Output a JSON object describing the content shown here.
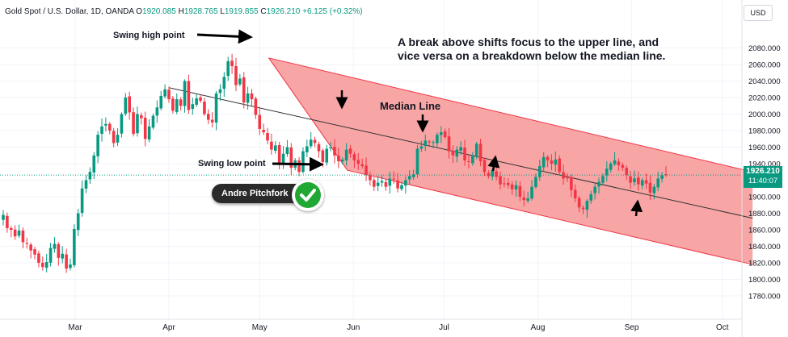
{
  "header": {
    "symbol": "Gold Spot / U.S. Dollar, 1D, OANDA",
    "open_label": "O",
    "open": "1920.085",
    "high_label": "H",
    "high": "1928.765",
    "low_label": "L",
    "low": "1919.855",
    "close_label": "C",
    "close": "1926.210",
    "change": "+6.125 (+0.32%)"
  },
  "currency_button": "USD",
  "last_price": "1926.210",
  "countdown": "11:40:07",
  "annotations": {
    "swing_high": "Swing high point",
    "swing_low": "Swing low point",
    "median": "Median Line",
    "explanation_1": "A break above shifts focus to the upper line, and",
    "explanation_2": "vice versa on a breakdown below the median line.",
    "pitchfork": "Andre Pitchfork"
  },
  "colors": {
    "up": "#089981",
    "down": "#f23645",
    "channel_fill": "#f7a0a0",
    "channel_line": "#f23645",
    "median_line": "#333333",
    "check_green": "#21a834"
  },
  "chart_data": {
    "type": "candlestick",
    "y_axis": {
      "ticks": [
        1780,
        1800,
        1820,
        1840,
        1860,
        1880,
        1900,
        1920,
        1940,
        1960,
        1980,
        2000,
        2020,
        2040,
        2060,
        2080
      ],
      "tick_labels": [
        "1780.000",
        "1800.000",
        "1820.000",
        "1840.000",
        "1860.000",
        "1880.000",
        "1900.000",
        "1920.000",
        "1940.000",
        "1960.000",
        "1980.000",
        "2000.000",
        "2020.000",
        "2040.000",
        "2060.000",
        "2080.000"
      ]
    },
    "x_axis": {
      "labels": [
        {
          "label": "Mar",
          "date": "2023-03-01"
        },
        {
          "label": "Apr",
          "date": "2023-04-01"
        },
        {
          "label": "May",
          "date": "2023-05-01"
        },
        {
          "label": "Jun",
          "date": "2023-06-01"
        },
        {
          "label": "Jul",
          "date": "2023-07-01"
        },
        {
          "label": "Aug",
          "date": "2023-08-01"
        },
        {
          "label": "Sep",
          "date": "2023-09-01"
        },
        {
          "label": "Oct",
          "date": "2023-10-01"
        }
      ]
    },
    "close_series": [
      1878,
      1862,
      1860,
      1852,
      1859,
      1845,
      1843,
      1835,
      1830,
      1820,
      1815,
      1821,
      1838,
      1843,
      1826,
      1831,
      1813,
      1818,
      1861,
      1880,
      1910,
      1920,
      1930,
      1950,
      1975,
      1985,
      1988,
      1980,
      1965,
      1975,
      2000,
      2020,
      2002,
      1976,
      2000,
      1995,
      1970,
      1985,
      1998,
      2008,
      2022,
      2030,
      2018,
      2004,
      2018,
      2010,
      2040,
      2005,
      2012,
      2019,
      2016,
      2000,
      1993,
      1990,
      2025,
      2030,
      2045,
      2064,
      2058,
      2035,
      2043,
      2014,
      2025,
      2018,
      1999,
      1982,
      1978,
      1968,
      1957,
      1962,
      1941,
      1952,
      1960,
      1935,
      1944,
      1930,
      1955,
      1961,
      1969,
      1965,
      1955,
      1942,
      1958,
      1960,
      1950,
      1943,
      1945,
      1957,
      1952,
      1944,
      1940,
      1937,
      1926,
      1920,
      1912,
      1917,
      1919,
      1912,
      1922,
      1921,
      1910,
      1914,
      1920,
      1925,
      1927,
      1958,
      1961,
      1968,
      1966,
      1966,
      1975,
      1978,
      1972,
      1955,
      1950,
      1957,
      1960,
      1944,
      1942,
      1950,
      1964,
      1943,
      1930,
      1925,
      1932,
      1924,
      1915,
      1916,
      1914,
      1909,
      1914,
      1900,
      1896,
      1898,
      1912,
      1924,
      1937,
      1948,
      1944,
      1940,
      1945,
      1930,
      1922,
      1923,
      1908,
      1898,
      1887,
      1885,
      1895,
      1903,
      1912,
      1918,
      1925,
      1934,
      1940,
      1944,
      1938,
      1935,
      1926,
      1917,
      1922,
      1915,
      1920,
      1916,
      1905,
      1912,
      1922,
      1926,
      1926
    ],
    "swing_high": {
      "date": "2023-05-04",
      "price": 2068
    },
    "swing_low": {
      "date": "2023-05-30",
      "price": 1932
    },
    "pitchfork": {
      "upper": [
        {
          "date": "2023-05-04",
          "price": 2068
        },
        {
          "date": "2023-10-11",
          "price": 1930
        }
      ],
      "median": [
        {
          "date": "2023-04-01",
          "price": 2032
        },
        {
          "date": "2023-10-11",
          "price": 1874
        }
      ],
      "lower": [
        {
          "date": "2023-05-30",
          "price": 1932
        },
        {
          "date": "2023-10-11",
          "price": 1818
        }
      ]
    },
    "last_price": 1926.21
  }
}
